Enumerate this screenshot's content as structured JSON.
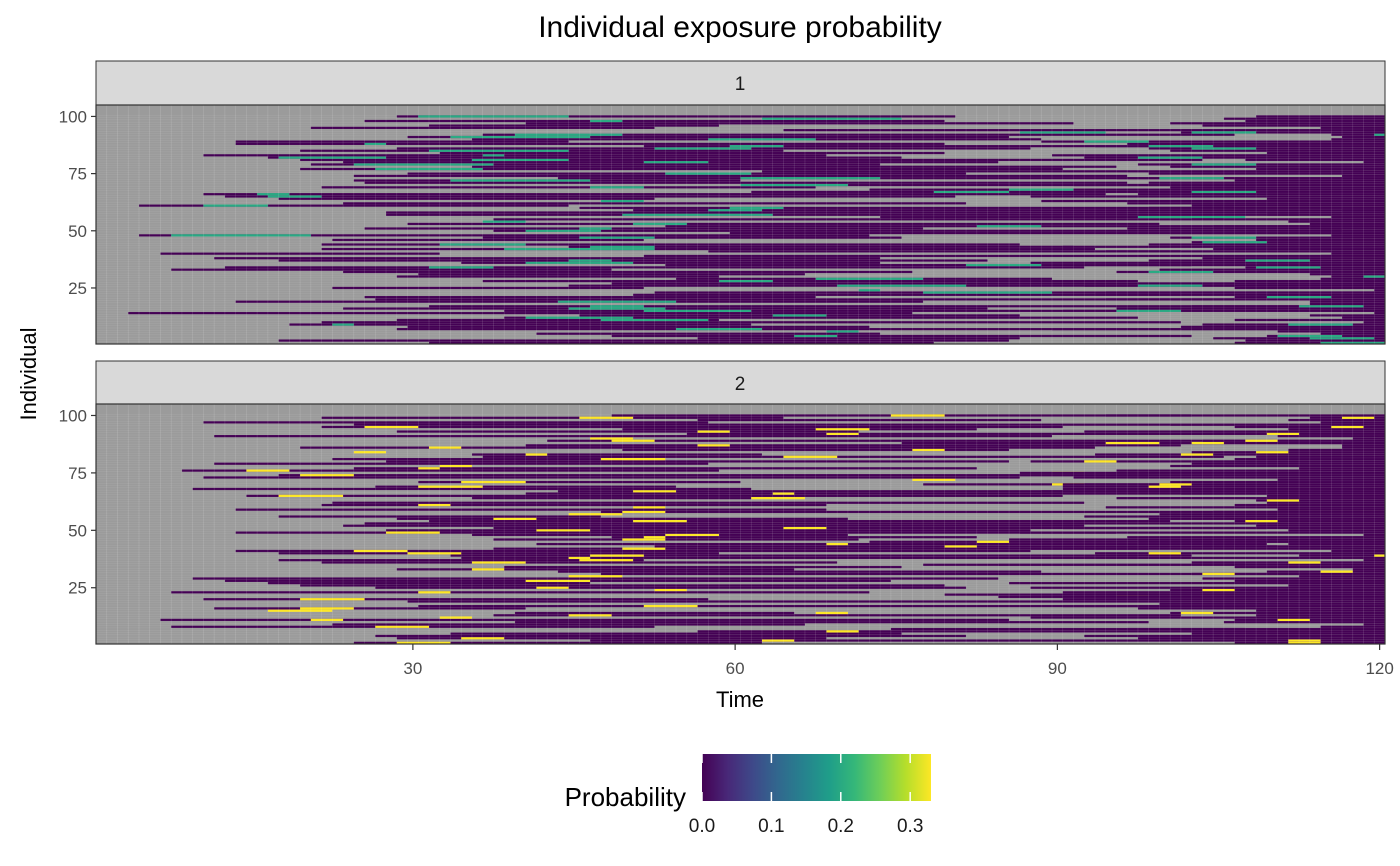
{
  "chart_data": {
    "type": "heatmap",
    "title": "Individual exposure probability",
    "xlabel": "Time",
    "ylabel": "Individual",
    "xlim": [
      1,
      120
    ],
    "ylim": [
      1,
      100
    ],
    "x_ticks": [
      30,
      60,
      90,
      120
    ],
    "y_ticks": [
      25,
      50,
      75,
      100
    ],
    "panels": [
      {
        "label": "1",
        "exposed_probability": 0.2,
        "individuals_shown": 100
      },
      {
        "label": "2",
        "exposed_probability": 0.33,
        "individuals_shown": 100
      }
    ],
    "cell_states": {
      "susceptible": "grey",
      "not_exposed": "0.0 (dark purple)",
      "exposed": "panel probability"
    },
    "legend": {
      "title": "Probability",
      "position": "bottom",
      "breaks": [
        "0.0",
        "0.1",
        "0.2",
        "0.3"
      ],
      "range": [
        0,
        0.33
      ],
      "palette": "viridis"
    },
    "colors": {
      "susceptible": "#9b9b9b",
      "grid": "#b5b5b5",
      "strip_fill": "#d9d9d9",
      "panel_border": "#333333",
      "viridis": [
        "#440154",
        "#482878",
        "#3e4989",
        "#31688e",
        "#26828e",
        "#1f9e89",
        "#35b779",
        "#6ece58",
        "#b5de2b",
        "#fde725"
      ]
    }
  }
}
